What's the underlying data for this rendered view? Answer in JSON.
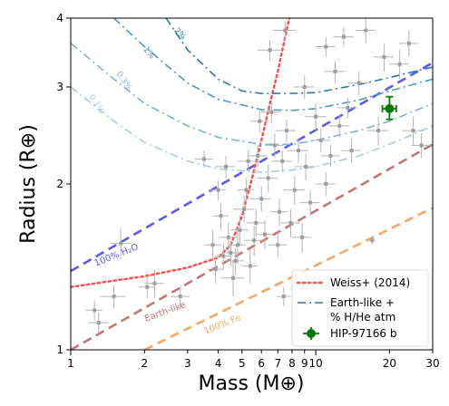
{
  "chart_data": {
    "type": "scatter",
    "title": "",
    "xlabel": "Mass (M⊕)",
    "ylabel": "Radius (R⊕)",
    "xscale": "log",
    "yscale": "log",
    "xlim": [
      1,
      30
    ],
    "ylim": [
      1,
      4
    ],
    "x_ticks": [
      1,
      2,
      3,
      4,
      5,
      6,
      7,
      8,
      9,
      10,
      20,
      30
    ],
    "x_tick_labels": [
      "1",
      "2",
      "3",
      "4",
      "5",
      "6",
      "7",
      "8",
      "9",
      "10",
      "20",
      "30"
    ],
    "y_ticks": [
      1,
      2,
      3,
      4
    ],
    "y_tick_labels": [
      "1",
      "2",
      "3",
      "4"
    ],
    "grid": false,
    "legend_position": "bottom-right",
    "legend": [
      {
        "label": "Weiss+ (2014)",
        "style": "dotted",
        "color": "#ff4b4b"
      },
      {
        "label": "Earth-like +\n% H/He atm",
        "style": "dashdot",
        "color": "#2a79b3"
      },
      {
        "label": "HIP-97166 b",
        "style": "errorbar-marker",
        "color": "#007b00"
      }
    ],
    "curves": [
      {
        "name": "100% H₂O",
        "label": "100% H₂O",
        "color": "#5a5af0",
        "style": "dashed",
        "points": [
          [
            1,
            1.39
          ],
          [
            30,
            3.32
          ]
        ]
      },
      {
        "name": "Earth-like",
        "label": "Earth-like",
        "color": "#c57474",
        "style": "dashed",
        "points": [
          [
            1,
            1.0
          ],
          [
            30,
            2.36
          ]
        ]
      },
      {
        "name": "100% Fe",
        "label": "100% Fe",
        "color": "#f5a865",
        "style": "dashed",
        "points": [
          [
            2,
            1.0
          ],
          [
            30,
            1.81
          ]
        ]
      },
      {
        "name": "Weiss+ (2014)",
        "color": "#ff4b4b",
        "style": "dotted",
        "points": [
          [
            1,
            1.3
          ],
          [
            2,
            1.36
          ],
          [
            3,
            1.41
          ],
          [
            4,
            1.47
          ],
          [
            4.5,
            1.55
          ],
          [
            5,
            1.75
          ],
          [
            5.5,
            2.05
          ],
          [
            6,
            2.4
          ],
          [
            6.5,
            2.8
          ],
          [
            7,
            3.2
          ],
          [
            7.5,
            3.7
          ],
          [
            7.8,
            4.0
          ]
        ]
      },
      {
        "name": "0.1%",
        "label": "0.1%",
        "color": "#a7cbe6",
        "style": "dashdot",
        "points": [
          [
            1,
            3.0
          ],
          [
            1.5,
            2.6
          ],
          [
            2,
            2.38
          ],
          [
            3,
            2.2
          ],
          [
            4,
            2.13
          ],
          [
            6,
            2.1
          ],
          [
            8,
            2.12
          ],
          [
            10,
            2.15
          ],
          [
            15,
            2.25
          ],
          [
            20,
            2.36
          ],
          [
            30,
            2.55
          ]
        ]
      },
      {
        "name": "0.3%",
        "label": "0.3%",
        "color": "#7bb3d8",
        "style": "dashdot",
        "points": [
          [
            1,
            3.6
          ],
          [
            1.5,
            3.1
          ],
          [
            2,
            2.8
          ],
          [
            3,
            2.55
          ],
          [
            4,
            2.43
          ],
          [
            6,
            2.36
          ],
          [
            8,
            2.36
          ],
          [
            10,
            2.4
          ],
          [
            15,
            2.5
          ],
          [
            20,
            2.6
          ],
          [
            30,
            2.8
          ]
        ]
      },
      {
        "name": "1%",
        "label": "1%",
        "color": "#4f95c6",
        "style": "dashdot",
        "points": [
          [
            1.5,
            4.0
          ],
          [
            2,
            3.55
          ],
          [
            3,
            3.05
          ],
          [
            4,
            2.85
          ],
          [
            6,
            2.73
          ],
          [
            8,
            2.72
          ],
          [
            10,
            2.74
          ],
          [
            15,
            2.84
          ],
          [
            20,
            2.95
          ],
          [
            30,
            3.1
          ]
        ]
      },
      {
        "name": "2%",
        "label": "2%",
        "color": "#2a79b3",
        "style": "dashdot",
        "points": [
          [
            2.45,
            4.0
          ],
          [
            3,
            3.5
          ],
          [
            4,
            3.1
          ],
          [
            5,
            2.95
          ],
          [
            6,
            2.92
          ],
          [
            8,
            2.92
          ],
          [
            10,
            2.93
          ],
          [
            15,
            3.03
          ],
          [
            20,
            3.12
          ],
          [
            30,
            3.26
          ]
        ]
      }
    ],
    "target": {
      "name": "HIP-97166 b",
      "x": 20.0,
      "y": 2.74,
      "xerr": [
        18.7,
        21.3
      ],
      "yerr": [
        2.62,
        2.88
      ],
      "color": "#007b00"
    },
    "points": [
      {
        "x": 1.5,
        "y": 1.25,
        "xe": 0.18,
        "ye": 0.06
      },
      {
        "x": 1.3,
        "y": 1.12,
        "xe": 0.12,
        "ye": 0.05
      },
      {
        "x": 1.25,
        "y": 1.18,
        "xe": 0.1,
        "ye": 0.05
      },
      {
        "x": 1.6,
        "y": 1.56,
        "xe": 0.15,
        "ye": 0.1
      },
      {
        "x": 2.2,
        "y": 1.32,
        "xe": 0.2,
        "ye": 0.08
      },
      {
        "x": 2.05,
        "y": 1.3,
        "xe": 0.15,
        "ye": 0.06
      },
      {
        "x": 2.8,
        "y": 1.25,
        "xe": 0.25,
        "ye": 0.06
      },
      {
        "x": 3.5,
        "y": 2.22,
        "xe": 0.3,
        "ye": 0.08
      },
      {
        "x": 3.8,
        "y": 1.55,
        "xe": 0.3,
        "ye": 0.1
      },
      {
        "x": 3.9,
        "y": 1.4,
        "xe": 0.3,
        "ye": 0.08
      },
      {
        "x": 4.1,
        "y": 1.75,
        "xe": 0.3,
        "ye": 0.1
      },
      {
        "x": 4.2,
        "y": 1.48,
        "xe": 0.3,
        "ye": 0.08
      },
      {
        "x": 4.3,
        "y": 2.15,
        "xe": 0.4,
        "ye": 0.1
      },
      {
        "x": 4.4,
        "y": 1.6,
        "xe": 0.4,
        "ye": 0.1
      },
      {
        "x": 4.5,
        "y": 1.5,
        "xe": 0.4,
        "ye": 0.08
      },
      {
        "x": 4.6,
        "y": 1.35,
        "xe": 0.5,
        "ye": 0.1
      },
      {
        "x": 4.7,
        "y": 1.45,
        "xe": 0.4,
        "ye": 0.08
      },
      {
        "x": 4.8,
        "y": 1.55,
        "xe": 0.4,
        "ye": 0.12
      },
      {
        "x": 4.9,
        "y": 1.65,
        "xe": 0.4,
        "ye": 0.1
      },
      {
        "x": 5.1,
        "y": 1.8,
        "xe": 0.5,
        "ye": 0.1
      },
      {
        "x": 5.2,
        "y": 1.95,
        "xe": 0.4,
        "ye": 0.1
      },
      {
        "x": 5.3,
        "y": 2.2,
        "xe": 0.5,
        "ye": 0.1
      },
      {
        "x": 5.4,
        "y": 1.42,
        "xe": 0.4,
        "ye": 0.1
      },
      {
        "x": 5.6,
        "y": 1.58,
        "xe": 0.5,
        "ye": 0.1
      },
      {
        "x": 5.7,
        "y": 1.7,
        "xe": 0.5,
        "ye": 0.1
      },
      {
        "x": 5.9,
        "y": 2.6,
        "xe": 0.5,
        "ye": 0.12
      },
      {
        "x": 6.0,
        "y": 1.88,
        "xe": 0.6,
        "ye": 0.1
      },
      {
        "x": 6.2,
        "y": 1.62,
        "xe": 0.5,
        "ye": 0.1
      },
      {
        "x": 6.4,
        "y": 2.05,
        "xe": 0.6,
        "ye": 0.12
      },
      {
        "x": 6.6,
        "y": 2.7,
        "xe": 0.6,
        "ye": 0.12
      },
      {
        "x": 6.8,
        "y": 2.35,
        "xe": 0.6,
        "ye": 0.12
      },
      {
        "x": 7.0,
        "y": 1.55,
        "xe": 0.6,
        "ye": 0.08
      },
      {
        "x": 7.1,
        "y": 1.78,
        "xe": 0.6,
        "ye": 0.1
      },
      {
        "x": 7.3,
        "y": 2.2,
        "xe": 0.7,
        "ye": 0.1
      },
      {
        "x": 7.4,
        "y": 1.25,
        "xe": 0.5,
        "ye": 0.05
      },
      {
        "x": 7.6,
        "y": 2.5,
        "xe": 0.7,
        "ye": 0.12
      },
      {
        "x": 7.9,
        "y": 1.7,
        "xe": 0.7,
        "ye": 0.1
      },
      {
        "x": 8.2,
        "y": 1.95,
        "xe": 0.8,
        "ye": 0.12
      },
      {
        "x": 8.5,
        "y": 2.3,
        "xe": 0.8,
        "ye": 0.12
      },
      {
        "x": 8.8,
        "y": 1.6,
        "xe": 0.8,
        "ye": 0.1
      },
      {
        "x": 9.1,
        "y": 2.15,
        "xe": 0.9,
        "ye": 0.12
      },
      {
        "x": 9.5,
        "y": 1.85,
        "xe": 0.9,
        "ye": 0.1
      },
      {
        "x": 10.0,
        "y": 2.65,
        "xe": 1.0,
        "ye": 0.15
      },
      {
        "x": 10.5,
        "y": 2.4,
        "xe": 1.0,
        "ye": 0.12
      },
      {
        "x": 11.0,
        "y": 3.55,
        "xe": 1.0,
        "ye": 0.15
      },
      {
        "x": 11.5,
        "y": 2.25,
        "xe": 1.0,
        "ye": 0.1
      },
      {
        "x": 12.0,
        "y": 3.2,
        "xe": 1.2,
        "ye": 0.15
      },
      {
        "x": 12.5,
        "y": 2.55,
        "xe": 1.2,
        "ye": 0.12
      },
      {
        "x": 13.0,
        "y": 3.7,
        "xe": 1.2,
        "ye": 0.15
      },
      {
        "x": 14.0,
        "y": 2.3,
        "xe": 1.3,
        "ye": 0.12
      },
      {
        "x": 15.0,
        "y": 3.05,
        "xe": 1.5,
        "ye": 0.15
      },
      {
        "x": 16.0,
        "y": 3.8,
        "xe": 1.5,
        "ye": 0.2
      },
      {
        "x": 17.0,
        "y": 1.58,
        "xe": 0.6,
        "ye": 0.03
      },
      {
        "x": 18.0,
        "y": 2.5,
        "xe": 1.8,
        "ye": 0.15
      },
      {
        "x": 22.0,
        "y": 3.3,
        "xe": 2.0,
        "ye": 0.2
      },
      {
        "x": 24.0,
        "y": 3.6,
        "xe": 2.2,
        "ye": 0.2
      },
      {
        "x": 25.0,
        "y": 2.5,
        "xe": 2.5,
        "ye": 0.15
      },
      {
        "x": 27.0,
        "y": 2.35,
        "xe": 2.5,
        "ye": 0.12
      },
      {
        "x": 6.5,
        "y": 3.5,
        "xe": 0.7,
        "ye": 0.15
      },
      {
        "x": 7.5,
        "y": 3.8,
        "xe": 0.8,
        "ye": 0.15
      },
      {
        "x": 4.0,
        "y": 1.95,
        "xe": 0.3,
        "ye": 0.08
      },
      {
        "x": 5.8,
        "y": 2.25,
        "xe": 0.5,
        "ye": 0.1
      },
      {
        "x": 9.0,
        "y": 3.0,
        "xe": 0.9,
        "ye": 0.15
      },
      {
        "x": 11.0,
        "y": 2.0,
        "xe": 1.0,
        "ye": 0.1
      },
      {
        "x": 13.5,
        "y": 2.75,
        "xe": 1.3,
        "ye": 0.12
      },
      {
        "x": 19.0,
        "y": 3.4,
        "xe": 1.8,
        "ye": 0.2
      }
    ]
  }
}
